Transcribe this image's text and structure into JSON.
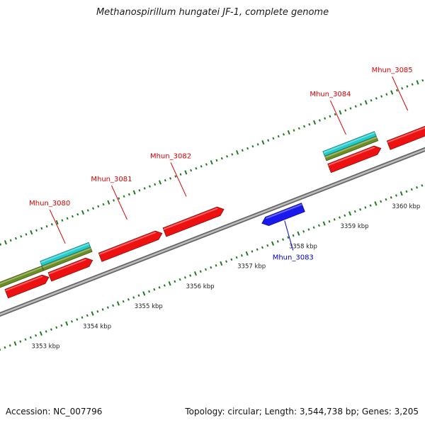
{
  "title": "Methanospirillum hungatei JF-1, complete genome",
  "footer": {
    "accession": "Accession: NC_007796",
    "summary": "Topology: circular; Length: 3,544,738 bp; Genes: 3,205"
  },
  "colors": {
    "backbone": "#888888",
    "cds_forward": "#ee1111",
    "cds_reverse": "#1a1aee",
    "gene_cyan": "#22cccc",
    "gene_olive": "#6b8e23",
    "tick": "#1f7a1f",
    "label_forward": "#dd0000",
    "label_reverse": "#0000cc"
  },
  "genome_map": {
    "scale_labels": [
      "3353 kbp",
      "3354 kbp",
      "3355 kbp",
      "3356 kbp",
      "3357 kbp",
      "3358 kbp",
      "3359 kbp",
      "3360 kbp"
    ],
    "features": [
      {
        "track": "cds",
        "strand": "+",
        "start_kbp": 3352.2,
        "end_kbp": 3352.55
      },
      {
        "track": "cds",
        "strand": "+",
        "start_kbp": 3352.68,
        "end_kbp": 3353.5
      },
      {
        "track": "cds",
        "strand": "+",
        "start_kbp": 3353.52,
        "end_kbp": 3354.35
      },
      {
        "track": "cds",
        "strand": "+",
        "start_kbp": 3354.5,
        "end_kbp": 3355.7
      },
      {
        "track": "cds",
        "strand": "+",
        "start_kbp": 3355.75,
        "end_kbp": 3356.9
      },
      {
        "track": "cds",
        "strand": "-",
        "start_kbp": 3357.45,
        "end_kbp": 3358.25
      },
      {
        "track": "cds",
        "strand": "+",
        "start_kbp": 3358.95,
        "end_kbp": 3359.95
      },
      {
        "track": "cds",
        "strand": "+",
        "start_kbp": 3360.1,
        "end_kbp": 3361.2
      },
      {
        "track": "olive",
        "strand": "+",
        "start_kbp": 3352.2,
        "end_kbp": 3352.35
      },
      {
        "track": "olive",
        "strand": "+",
        "start_kbp": 3352.38,
        "end_kbp": 3353.45
      },
      {
        "track": "olive",
        "strand": "+",
        "start_kbp": 3353.46,
        "end_kbp": 3354.4
      },
      {
        "track": "olive",
        "strand": "+",
        "start_kbp": 3358.95,
        "end_kbp": 3359.95
      },
      {
        "track": "cyan",
        "strand": "+",
        "start_kbp": 3353.46,
        "end_kbp": 3354.4
      },
      {
        "track": "cyan",
        "strand": "+",
        "start_kbp": 3358.95,
        "end_kbp": 3359.95
      }
    ],
    "gene_labels": [
      {
        "name": "Mhun_3080",
        "strand": "+",
        "position_kbp": 3354.0
      },
      {
        "name": "Mhun_3081",
        "strand": "+",
        "position_kbp": 3355.2
      },
      {
        "name": "Mhun_3082",
        "strand": "+",
        "position_kbp": 3356.35
      },
      {
        "name": "Mhun_3083",
        "strand": "-",
        "position_kbp": 3357.85
      },
      {
        "name": "Mhun_3084",
        "strand": "+",
        "position_kbp": 3359.45
      },
      {
        "name": "Mhun_3085",
        "strand": "+",
        "position_kbp": 3360.65
      }
    ]
  }
}
